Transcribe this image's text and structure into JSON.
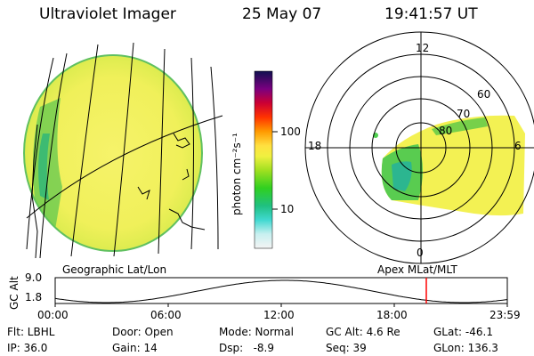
{
  "header": {
    "instrument": "Ultraviolet Imager",
    "date": "25 May 07",
    "time": "19:41:57 UT"
  },
  "colorbar": {
    "unit_label": "photon cm⁻²s⁻¹",
    "ticks": [
      "100",
      "10"
    ]
  },
  "polar": {
    "mlt_labels": [
      "12",
      "18",
      "6",
      "0"
    ],
    "lat_labels": [
      "60",
      "70",
      "80"
    ]
  },
  "projection_labels": {
    "left": "Geographic Lat/Lon",
    "right": "Apex MLat/MLT"
  },
  "altitude_plot": {
    "axis_label": "GC Alt",
    "y_ticks": [
      "9.0",
      "1.8"
    ],
    "x_ticks": [
      "00:00",
      "06:00",
      "12:00",
      "18:00",
      "23:59"
    ],
    "current_time_marker_hours": 19.7,
    "marker_color": "#ff0000"
  },
  "status": {
    "flt": "Flt: LBHL",
    "ip": "IP: 36.0",
    "door": "Door: Open",
    "gain": "Gain: 14",
    "mode": "Mode: Normal",
    "dsp": "Dsp:   -8.9",
    "gc_alt": "GC Alt: 4.6 Re",
    "seq": "Seq: 39",
    "glat": "GLat: -46.1",
    "glon": "GLon: 136.3"
  }
}
